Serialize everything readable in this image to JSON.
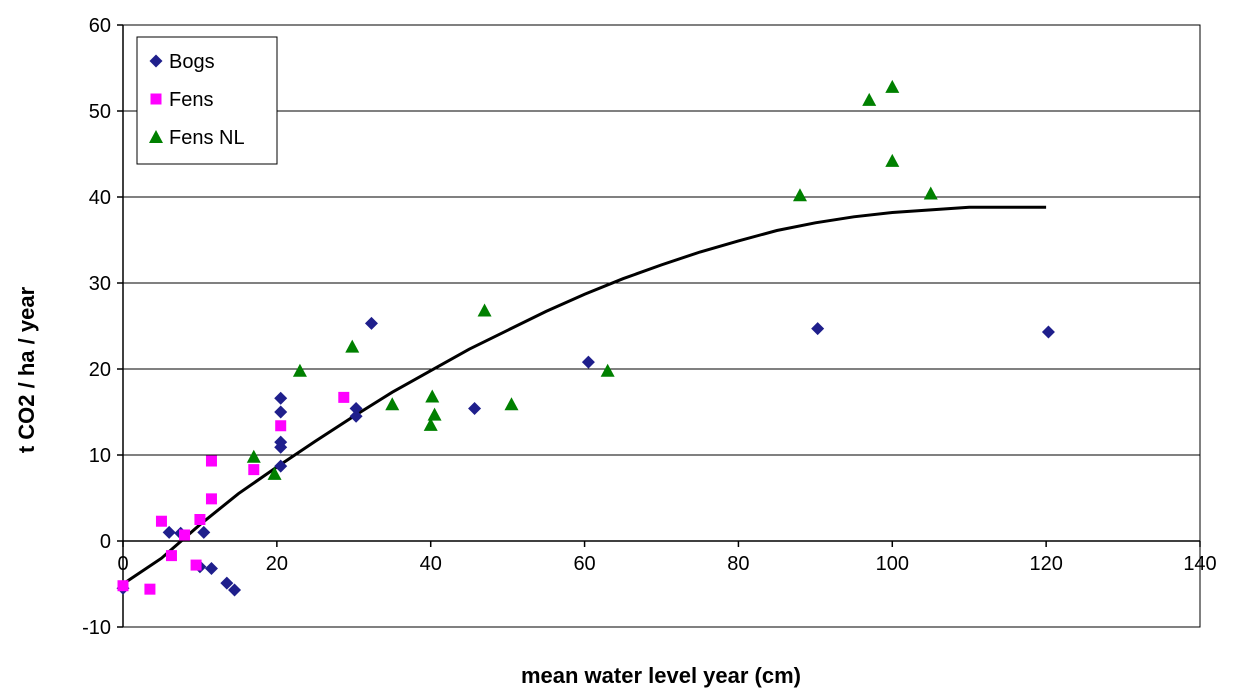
{
  "chart_data": {
    "type": "scatter",
    "xlabel": "mean water level year (cm)",
    "ylabel": "t CO2 / ha / year",
    "xlim": [
      0,
      140
    ],
    "ylim": [
      -10,
      60
    ],
    "xticks": [
      0,
      20,
      40,
      60,
      80,
      100,
      120,
      140
    ],
    "yticks": [
      -10,
      0,
      10,
      20,
      30,
      40,
      50,
      60
    ],
    "grid": "horizontal",
    "legend": "top-left",
    "series": [
      {
        "name": "Bogs",
        "marker": "diamond",
        "color": "#1f1f8c",
        "points": [
          [
            0,
            -5.5
          ],
          [
            6,
            1
          ],
          [
            7.5,
            0.9
          ],
          [
            10,
            -3
          ],
          [
            10.5,
            1
          ],
          [
            11.5,
            -3.2
          ],
          [
            13.5,
            -4.9
          ],
          [
            14.5,
            -5.7
          ],
          [
            20.5,
            16.6
          ],
          [
            20.5,
            15
          ],
          [
            20.5,
            11.5
          ],
          [
            20.5,
            10.9
          ],
          [
            20.5,
            8.7
          ],
          [
            30.3,
            15.4
          ],
          [
            30.3,
            14.5
          ],
          [
            32.3,
            25.3
          ],
          [
            45.7,
            15.4
          ],
          [
            60.5,
            20.8
          ],
          [
            90.3,
            24.7
          ],
          [
            120.3,
            24.3
          ]
        ]
      },
      {
        "name": "Fens",
        "marker": "square",
        "color": "#ff00ff",
        "points": [
          [
            0,
            -5.2
          ],
          [
            3.5,
            -5.6
          ],
          [
            5,
            2.3
          ],
          [
            6.3,
            -1.7
          ],
          [
            8,
            0.7
          ],
          [
            9.5,
            -2.8
          ],
          [
            10,
            2.5
          ],
          [
            11.5,
            9.3
          ],
          [
            11.5,
            4.9
          ],
          [
            17,
            8.3
          ],
          [
            20.5,
            13.4
          ],
          [
            28.7,
            16.7
          ]
        ]
      },
      {
        "name": "Fens NL",
        "marker": "triangle",
        "color": "#008000",
        "points": [
          [
            17,
            9.8
          ],
          [
            19.7,
            7.8
          ],
          [
            23,
            19.8
          ],
          [
            29.8,
            22.6
          ],
          [
            35,
            15.9
          ],
          [
            40,
            13.5
          ],
          [
            40.2,
            16.8
          ],
          [
            40.5,
            14.7
          ],
          [
            47,
            26.8
          ],
          [
            50.5,
            15.9
          ],
          [
            63,
            19.8
          ],
          [
            88,
            40.2
          ],
          [
            97,
            51.3
          ],
          [
            100,
            52.8
          ],
          [
            100,
            44.2
          ],
          [
            105,
            40.4
          ]
        ]
      }
    ],
    "trend_line": {
      "color": "#000000",
      "points": [
        [
          0,
          -5
        ],
        [
          5,
          -2
        ],
        [
          10,
          1.9
        ],
        [
          15,
          5.5
        ],
        [
          20,
          8.6
        ],
        [
          25,
          11.6
        ],
        [
          30,
          14.5
        ],
        [
          35,
          17.3
        ],
        [
          40,
          19.8
        ],
        [
          45,
          22.3
        ],
        [
          50,
          24.5
        ],
        [
          55,
          26.7
        ],
        [
          60,
          28.7
        ],
        [
          65,
          30.5
        ],
        [
          70,
          32.1
        ],
        [
          75,
          33.6
        ],
        [
          80,
          34.9
        ],
        [
          85,
          36.1
        ],
        [
          90,
          37
        ],
        [
          95,
          37.7
        ],
        [
          100,
          38.2
        ],
        [
          105,
          38.5
        ],
        [
          110,
          38.8
        ],
        [
          115,
          38.8
        ],
        [
          120,
          38.8
        ]
      ]
    }
  }
}
